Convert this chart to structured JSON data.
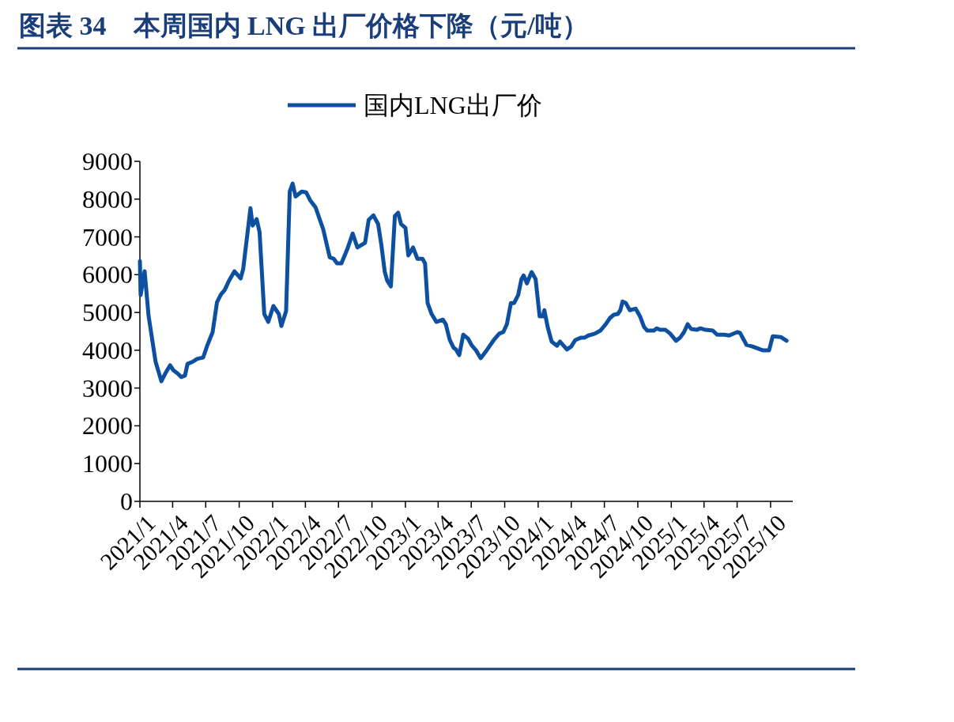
{
  "chart_data": {
    "type": "line",
    "title": "图表 34　本周国内 LNG 出厂价格下降（元/吨）",
    "legend": "top",
    "grid": false,
    "x": [
      "2021-01-01",
      "2021-01-03",
      "2021-01-14",
      "2021-01-25",
      "2021-02-13",
      "2021-03-01",
      "2021-03-12",
      "2021-03-25",
      "2021-04-03",
      "2021-04-14",
      "2021-04-25",
      "2021-05-05",
      "2021-05-12",
      "2021-05-27",
      "2021-06-07",
      "2021-06-24",
      "2021-07-05",
      "2021-07-20",
      "2021-08-01",
      "2021-08-12",
      "2021-08-22",
      "2021-09-03",
      "2021-09-18",
      "2021-10-05",
      "2021-10-12",
      "2021-11-01",
      "2021-11-07",
      "2021-11-18",
      "2021-11-26",
      "2021-12-09",
      "2021-12-20",
      "2022-01-03",
      "2022-01-18",
      "2022-01-25",
      "2022-02-07",
      "2022-02-17",
      "2022-02-25",
      "2022-03-05",
      "2022-03-22",
      "2022-04-03",
      "2022-04-14",
      "2022-04-29",
      "2022-05-20",
      "2022-06-07",
      "2022-06-18",
      "2022-06-27",
      "2022-07-09",
      "2022-07-25",
      "2022-08-09",
      "2022-08-22",
      "2022-09-12",
      "2022-09-22",
      "2022-10-05",
      "2022-10-18",
      "2022-10-27",
      "2022-11-05",
      "2022-11-12",
      "2022-11-22",
      "2022-12-03",
      "2022-12-12",
      "2022-12-20",
      "2023-01-01",
      "2023-01-09",
      "2023-01-22",
      "2023-02-03",
      "2023-02-17",
      "2023-02-24",
      "2023-03-03",
      "2023-03-14",
      "2023-03-27",
      "2023-04-14",
      "2023-04-22",
      "2023-05-03",
      "2023-05-14",
      "2023-05-20",
      "2023-05-29",
      "2023-06-09",
      "2023-06-22",
      "2023-07-03",
      "2023-07-14",
      "2023-07-27",
      "2023-08-14",
      "2023-09-01",
      "2023-09-16",
      "2023-09-27",
      "2023-10-07",
      "2023-10-18",
      "2023-10-27",
      "2023-11-07",
      "2023-11-16",
      "2023-11-22",
      "2023-12-01",
      "2023-12-14",
      "2023-12-25",
      "2024-01-05",
      "2024-01-14",
      "2024-01-18",
      "2024-01-27",
      "2024-02-07",
      "2024-02-22",
      "2024-03-01",
      "2024-03-20",
      "2024-04-01",
      "2024-04-12",
      "2024-04-27",
      "2024-05-07",
      "2024-05-18",
      "2024-06-05",
      "2024-06-20",
      "2024-07-05",
      "2024-07-16",
      "2024-07-27",
      "2024-08-07",
      "2024-08-14",
      "2024-08-20",
      "2024-08-29",
      "2024-09-09",
      "2024-09-25",
      "2024-10-07",
      "2024-10-18",
      "2024-10-27",
      "2024-11-14",
      "2024-11-22",
      "2024-12-01",
      "2024-12-16",
      "2024-12-29",
      "2025-01-14",
      "2025-01-25",
      "2025-02-05",
      "2025-02-15",
      "2025-02-25",
      "2025-03-12",
      "2025-03-22",
      "2025-04-05",
      "2025-04-25",
      "2025-05-07",
      "2025-05-27",
      "2025-06-09",
      "2025-07-01",
      "2025-07-09",
      "2025-07-27",
      "2025-08-12",
      "2025-09-03",
      "2025-09-09",
      "2025-09-27",
      "2025-10-07",
      "2025-10-29",
      "2025-11-14"
    ],
    "series": [
      {
        "name": "国内LNG出厂价",
        "color": "#0d4fa0",
        "values": [
          6360,
          5460,
          6090,
          4900,
          3700,
          3180,
          3390,
          3600,
          3470,
          3390,
          3290,
          3330,
          3640,
          3700,
          3770,
          3810,
          4120,
          4480,
          5270,
          5480,
          5590,
          5840,
          6090,
          5900,
          6150,
          7760,
          7300,
          7470,
          7130,
          4960,
          4750,
          5170,
          4960,
          4640,
          5040,
          8200,
          8410,
          8070,
          8200,
          8180,
          7970,
          7780,
          7200,
          6460,
          6420,
          6300,
          6300,
          6670,
          7090,
          6720,
          6840,
          7450,
          7570,
          7340,
          6780,
          6090,
          5840,
          5690,
          7550,
          7640,
          7340,
          7240,
          6510,
          6720,
          6420,
          6420,
          6300,
          5250,
          4960,
          4750,
          4810,
          4690,
          4270,
          4060,
          4020,
          3870,
          4410,
          4310,
          4120,
          4000,
          3790,
          4020,
          4270,
          4440,
          4480,
          4690,
          5250,
          5250,
          5460,
          5880,
          5980,
          5770,
          6070,
          5880,
          4900,
          4900,
          5060,
          4620,
          4230,
          4120,
          4230,
          4020,
          4100,
          4270,
          4330,
          4330,
          4390,
          4440,
          4520,
          4690,
          4850,
          4940,
          4960,
          5060,
          5290,
          5250,
          5060,
          5100,
          4900,
          4620,
          4520,
          4520,
          4580,
          4540,
          4540,
          4440,
          4250,
          4330,
          4480,
          4690,
          4560,
          4540,
          4580,
          4540,
          4520,
          4410,
          4410,
          4390,
          4480,
          4460,
          4140,
          4100,
          4020,
          4000,
          4000,
          4370,
          4350,
          4250
        ]
      }
    ],
    "xlim": [
      "2021-01-01",
      "2025-12-01"
    ],
    "xticks": [
      {
        "value": "2021-01-01",
        "label": "2021/1"
      },
      {
        "value": "2021-04-01",
        "label": "2021/4"
      },
      {
        "value": "2021-07-01",
        "label": "2021/7"
      },
      {
        "value": "2021-10-01",
        "label": "2021/10"
      },
      {
        "value": "2022-01-01",
        "label": "2022/1"
      },
      {
        "value": "2022-04-01",
        "label": "2022/4"
      },
      {
        "value": "2022-07-01",
        "label": "2022/7"
      },
      {
        "value": "2022-10-01",
        "label": "2022/10"
      },
      {
        "value": "2023-01-01",
        "label": "2023/1"
      },
      {
        "value": "2023-04-01",
        "label": "2023/4"
      },
      {
        "value": "2023-07-01",
        "label": "2023/7"
      },
      {
        "value": "2023-10-01",
        "label": "2023/10"
      },
      {
        "value": "2024-01-01",
        "label": "2024/1"
      },
      {
        "value": "2024-04-01",
        "label": "2024/4"
      },
      {
        "value": "2024-07-01",
        "label": "2024/7"
      },
      {
        "value": "2024-10-01",
        "label": "2024/10"
      },
      {
        "value": "2025-01-01",
        "label": "2025/1"
      },
      {
        "value": "2025-04-01",
        "label": "2025/4"
      },
      {
        "value": "2025-07-01",
        "label": "2025/7"
      },
      {
        "value": "2025-10-01",
        "label": "2025/10"
      }
    ],
    "ylim": [
      0,
      9000
    ],
    "yticks": [
      0,
      1000,
      2000,
      3000,
      4000,
      5000,
      6000,
      7000,
      8000,
      9000
    ]
  }
}
